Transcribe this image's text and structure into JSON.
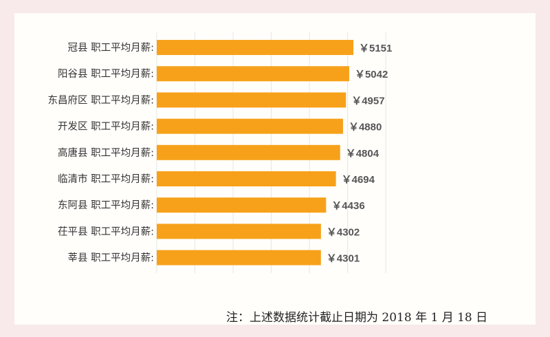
{
  "chart_data": {
    "type": "bar",
    "orientation": "horizontal",
    "categories": [
      "冠县 职工平均月薪:",
      "阳谷县 职工平均月薪:",
      "东昌府区 职工平均月薪:",
      "开发区 职工平均月薪:",
      "高唐县 职工平均月薪:",
      "临清市 职工平均月薪:",
      "东阿县 职工平均月薪:",
      "茌平县 职工平均月薪:",
      "莘县 职工平均月薪:"
    ],
    "values": [
      5151,
      5042,
      4957,
      4880,
      4804,
      4694,
      4436,
      4302,
      4301
    ],
    "value_labels": [
      "￥5151",
      "￥5042",
      "￥4957",
      "￥4880",
      "￥4804",
      "￥4694",
      "￥4436",
      "￥4302",
      "￥4301"
    ],
    "title": "",
    "xlabel": "",
    "ylabel": "",
    "xlim": [
      0,
      6000
    ],
    "grid": true,
    "legend": "none",
    "bar_color": "#f7a11a",
    "label_color": "#333333",
    "value_color": "#555555",
    "grid_color": "#e6e6e6"
  },
  "note": "注：上述数据统计截止日期为 2018 年 1 月 18 日"
}
